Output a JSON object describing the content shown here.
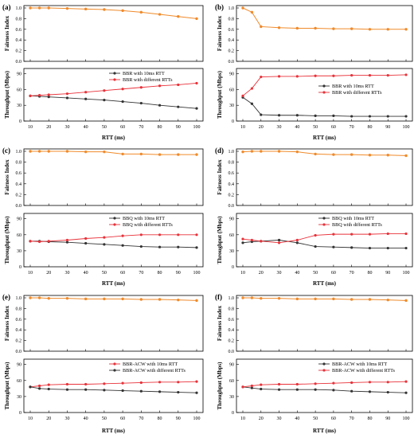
{
  "figure": {
    "common": {
      "xlabel": "RTT (ms)",
      "fairness_ylabel": "Fairness Index",
      "throughput_ylabel": "Throughput (Mbps)",
      "x_ticks": [
        10,
        20,
        30,
        40,
        50,
        60,
        70,
        80,
        90,
        100
      ],
      "fairness_ticks": [
        0.0,
        0.2,
        0.4,
        0.6,
        0.8,
        1.0
      ],
      "throughput_ticks": [
        0,
        30,
        60,
        90
      ],
      "colors": {
        "orange": "#f08a2a",
        "red": "#e8323a",
        "dark": "#333333"
      }
    }
  },
  "chart_data": [
    {
      "panel": "(a)",
      "type": "line",
      "fairness": {
        "x": [
          10,
          15,
          20,
          30,
          40,
          50,
          60,
          70,
          80,
          90,
          100
        ],
        "values": [
          1.0,
          1.0,
          1.0,
          0.99,
          0.98,
          0.97,
          0.95,
          0.92,
          0.88,
          0.84,
          0.8
        ],
        "ylim": [
          0,
          1
        ]
      },
      "throughput": {
        "ylim": [
          0,
          100
        ],
        "legend_position": "top-right",
        "series": [
          {
            "name": "BBR with 10ms RTT",
            "color": "dark",
            "x": [
              10,
              15,
              20,
              30,
              40,
              50,
              60,
              70,
              80,
              90,
              100
            ],
            "values": [
              48,
              47,
              46,
              44,
              42,
              40,
              37,
              34,
              30,
              27,
              24
            ]
          },
          {
            "name": "BBR with different RTTs",
            "color": "red",
            "x": [
              10,
              15,
              20,
              30,
              40,
              50,
              60,
              70,
              80,
              90,
              100
            ],
            "values": [
              48,
              49,
              50,
              52,
              55,
              58,
              61,
              64,
              67,
              69,
              72
            ]
          }
        ]
      }
    },
    {
      "panel": "(b)",
      "type": "line",
      "fairness": {
        "x": [
          10,
          15,
          20,
          30,
          40,
          50,
          60,
          70,
          80,
          90,
          100
        ],
        "values": [
          1.0,
          0.92,
          0.65,
          0.63,
          0.62,
          0.62,
          0.61,
          0.61,
          0.6,
          0.6,
          0.6
        ],
        "ylim": [
          0,
          1
        ]
      },
      "throughput": {
        "ylim": [
          0,
          100
        ],
        "legend_position": "right",
        "series": [
          {
            "name": "BBR with 10ms RTT",
            "color": "dark",
            "x": [
              10,
              15,
              20,
              30,
              40,
              50,
              60,
              70,
              80,
              90,
              100
            ],
            "values": [
              45,
              33,
              12,
              11,
              11,
              10,
              10,
              9,
              9,
              9,
              9
            ]
          },
          {
            "name": "BBR with different RTTs",
            "color": "red",
            "x": [
              10,
              15,
              20,
              30,
              40,
              50,
              60,
              70,
              80,
              90,
              100
            ],
            "values": [
              48,
              62,
              84,
              85,
              85,
              86,
              86,
              87,
              87,
              87,
              88
            ]
          }
        ]
      }
    },
    {
      "panel": "(c)",
      "type": "line",
      "fairness": {
        "x": [
          10,
          15,
          20,
          30,
          40,
          50,
          60,
          70,
          80,
          90,
          100
        ],
        "values": [
          1.0,
          1.0,
          1.0,
          1.0,
          0.99,
          0.99,
          0.95,
          0.95,
          0.94,
          0.94,
          0.94
        ],
        "ylim": [
          0,
          1
        ]
      },
      "throughput": {
        "ylim": [
          0,
          100
        ],
        "legend_position": "top-right",
        "series": [
          {
            "name": "BBQ with 10ms RTT",
            "color": "dark",
            "x": [
              10,
              15,
              20,
              30,
              40,
              50,
              60,
              70,
              80,
              90,
              100
            ],
            "values": [
              48,
              48,
              47,
              46,
              44,
              42,
              40,
              38,
              37,
              37,
              36
            ]
          },
          {
            "name": "BBQ with different RTTs",
            "color": "red",
            "x": [
              10,
              15,
              20,
              30,
              40,
              50,
              60,
              70,
              80,
              90,
              100
            ],
            "values": [
              48,
              47,
              48,
              50,
              53,
              55,
              58,
              60,
              60,
              60,
              60
            ]
          }
        ]
      }
    },
    {
      "panel": "(d)",
      "type": "line",
      "fairness": {
        "x": [
          10,
          15,
          20,
          30,
          40,
          50,
          60,
          70,
          80,
          90,
          100
        ],
        "values": [
          0.99,
          1.0,
          1.0,
          1.0,
          0.99,
          0.95,
          0.94,
          0.94,
          0.93,
          0.93,
          0.92
        ],
        "ylim": [
          0,
          1
        ]
      },
      "throughput": {
        "ylim": [
          0,
          100
        ],
        "legend_position": "top-right",
        "series": [
          {
            "name": "BBQ with 10ms RTT",
            "color": "dark",
            "x": [
              10,
              15,
              20,
              30,
              40,
              50,
              60,
              70,
              80,
              90,
              100
            ],
            "values": [
              45,
              47,
              48,
              50,
              45,
              38,
              37,
              36,
              35,
              35,
              35
            ]
          },
          {
            "name": "BBQ with different RTTs",
            "color": "red",
            "x": [
              10,
              15,
              20,
              30,
              40,
              50,
              60,
              70,
              80,
              90,
              100
            ],
            "values": [
              52,
              50,
              48,
              45,
              50,
              59,
              61,
              61,
              61,
              62,
              62
            ]
          }
        ]
      }
    },
    {
      "panel": "(e)",
      "type": "line",
      "fairness": {
        "x": [
          10,
          15,
          20,
          30,
          40,
          50,
          60,
          70,
          80,
          90,
          100
        ],
        "values": [
          1.0,
          1.0,
          0.99,
          0.99,
          0.98,
          0.98,
          0.98,
          0.97,
          0.97,
          0.96,
          0.95
        ],
        "ylim": [
          0,
          1
        ]
      },
      "throughput": {
        "ylim": [
          0,
          100
        ],
        "legend_position": "top-right",
        "series": [
          {
            "name": "BBR-ACW with 10ms RTT",
            "color": "red",
            "x": [
              10,
              15,
              20,
              30,
              40,
              50,
              60,
              70,
              80,
              90,
              100
            ],
            "values": [
              48,
              50,
              52,
              53,
              53,
              54,
              55,
              56,
              57,
              57,
              58
            ]
          },
          {
            "name": "BBR-ACW with different RTTs",
            "color": "dark",
            "x": [
              10,
              15,
              20,
              30,
              40,
              50,
              60,
              70,
              80,
              90,
              100
            ],
            "values": [
              48,
              45,
              44,
              43,
              43,
              42,
              41,
              40,
              39,
              38,
              37
            ]
          }
        ]
      }
    },
    {
      "panel": "(f)",
      "type": "line",
      "fairness": {
        "x": [
          10,
          15,
          20,
          30,
          40,
          50,
          60,
          70,
          80,
          90,
          100
        ],
        "values": [
          1.0,
          1.0,
          0.99,
          0.99,
          0.98,
          0.98,
          0.98,
          0.97,
          0.97,
          0.96,
          0.95
        ],
        "ylim": [
          0,
          1
        ]
      },
      "throughput": {
        "ylim": [
          0,
          100
        ],
        "legend_position": "top-right",
        "series": [
          {
            "name": "BBR-ACW with 10ms RTT",
            "color": "dark",
            "x": [
              10,
              15,
              20,
              30,
              40,
              50,
              60,
              70,
              80,
              90,
              100
            ],
            "values": [
              48,
              46,
              44,
              43,
              43,
              43,
              42,
              40,
              39,
              38,
              37
            ]
          },
          {
            "name": "BBR-ACW with different RTTs",
            "color": "red",
            "x": [
              10,
              15,
              20,
              30,
              40,
              50,
              60,
              70,
              80,
              90,
              100
            ],
            "values": [
              48,
              50,
              52,
              53,
              53,
              54,
              55,
              56,
              57,
              57,
              58
            ]
          }
        ]
      }
    }
  ]
}
